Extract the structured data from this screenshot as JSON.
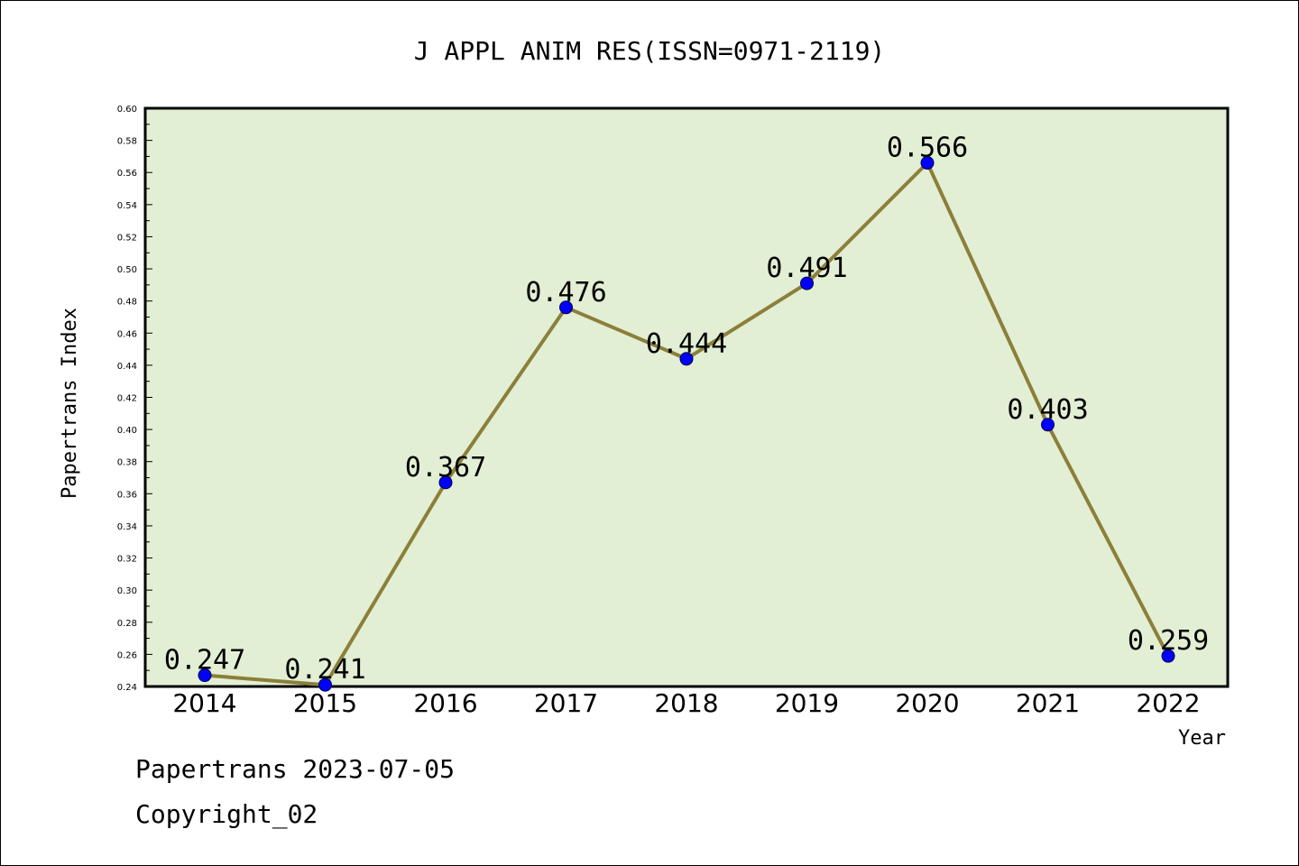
{
  "chart_data": {
    "type": "line",
    "title": "J APPL ANIM RES(ISSN=0971-2119)",
    "xlabel": "Year",
    "ylabel": "Papertrans Index",
    "categories": [
      "2014",
      "2015",
      "2016",
      "2017",
      "2018",
      "2019",
      "2020",
      "2021",
      "2022"
    ],
    "values": [
      0.247,
      0.241,
      0.367,
      0.476,
      0.444,
      0.491,
      0.566,
      0.403,
      0.259
    ],
    "value_labels": [
      "0.247",
      "0.241",
      "0.367",
      "0.476",
      "0.444",
      "0.491",
      "0.566",
      "0.403",
      "0.259"
    ],
    "ylim": [
      0.24,
      0.6
    ],
    "yticks": [
      "0.24",
      "0.26",
      "0.28",
      "0.30",
      "0.32",
      "0.34",
      "0.36",
      "0.38",
      "0.40",
      "0.42",
      "0.44",
      "0.46",
      "0.48",
      "0.50",
      "0.52",
      "0.54",
      "0.56",
      "0.58",
      "0.60"
    ],
    "grid": false,
    "legend": "none",
    "colors": {
      "plot_background": "#e2efd4",
      "line": "#8b7f3a",
      "marker": "#0000ff",
      "axis": "#000000"
    }
  },
  "footer": {
    "line1": "Papertrans 2023-07-05",
    "line2": "Copyright_02"
  }
}
